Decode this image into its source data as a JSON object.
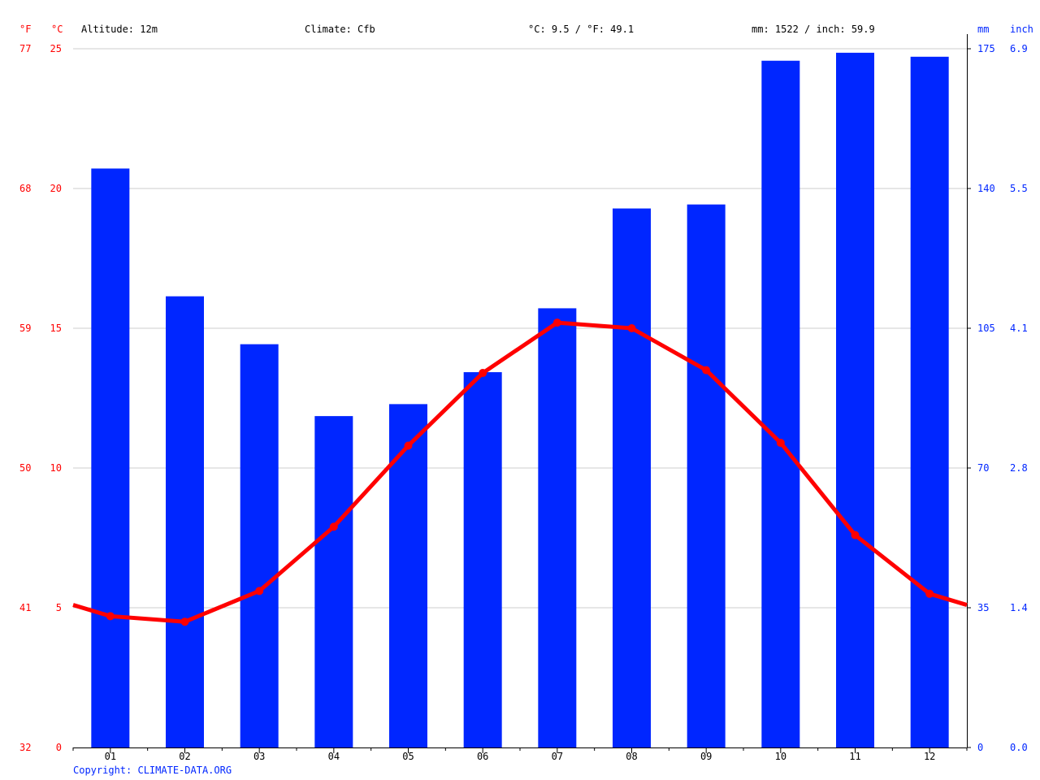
{
  "header": {
    "unit_f": "°F",
    "unit_c": "°C",
    "altitude": "Altitude: 12m",
    "climate": "Climate: Cfb",
    "avg_temp": "°C: 9.5 / °F: 49.1",
    "precip_total": "mm: 1522 / inch: 59.9",
    "unit_mm": "mm",
    "unit_inch": "inch"
  },
  "copyright": "Copyright: CLIMATE-DATA.ORG",
  "colors": {
    "temperature": "#ff0000",
    "precipitation": "#0026ff",
    "grid": "#cccccc",
    "axis": "#000000"
  },
  "chart_data": {
    "type": "bar",
    "categories": [
      "01",
      "02",
      "03",
      "04",
      "05",
      "06",
      "07",
      "08",
      "09",
      "10",
      "11",
      "12"
    ],
    "series": [
      {
        "type": "bar",
        "axis": "right",
        "unit": "mm",
        "values": [
          145,
          113,
          101,
          83,
          86,
          94,
          110,
          135,
          136,
          172,
          174,
          173
        ]
      },
      {
        "type": "line",
        "axis": "left",
        "unit": "°C",
        "values": [
          4.7,
          4.5,
          5.6,
          7.9,
          10.8,
          13.4,
          15.2,
          15.0,
          13.5,
          10.9,
          7.6,
          5.5
        ],
        "edge_values": [
          5.1,
          5.1
        ]
      }
    ],
    "y_left": {
      "label": "°C",
      "ylim": [
        0,
        25
      ],
      "ticks": [
        "0",
        "5",
        "10",
        "15",
        "20",
        "25"
      ]
    },
    "y_left_f": {
      "label": "°F",
      "ticks": [
        "32",
        "41",
        "50",
        "59",
        "68",
        "77"
      ]
    },
    "y_right": {
      "label": "mm",
      "ylim": [
        0,
        175
      ],
      "ticks": [
        "0",
        "35",
        "70",
        "105",
        "140",
        "175"
      ]
    },
    "y_right_inch": {
      "label": "inch",
      "ticks": [
        "0.0",
        "1.4",
        "2.8",
        "4.1",
        "5.5",
        "6.9"
      ]
    },
    "grid": true,
    "legend": "none"
  }
}
